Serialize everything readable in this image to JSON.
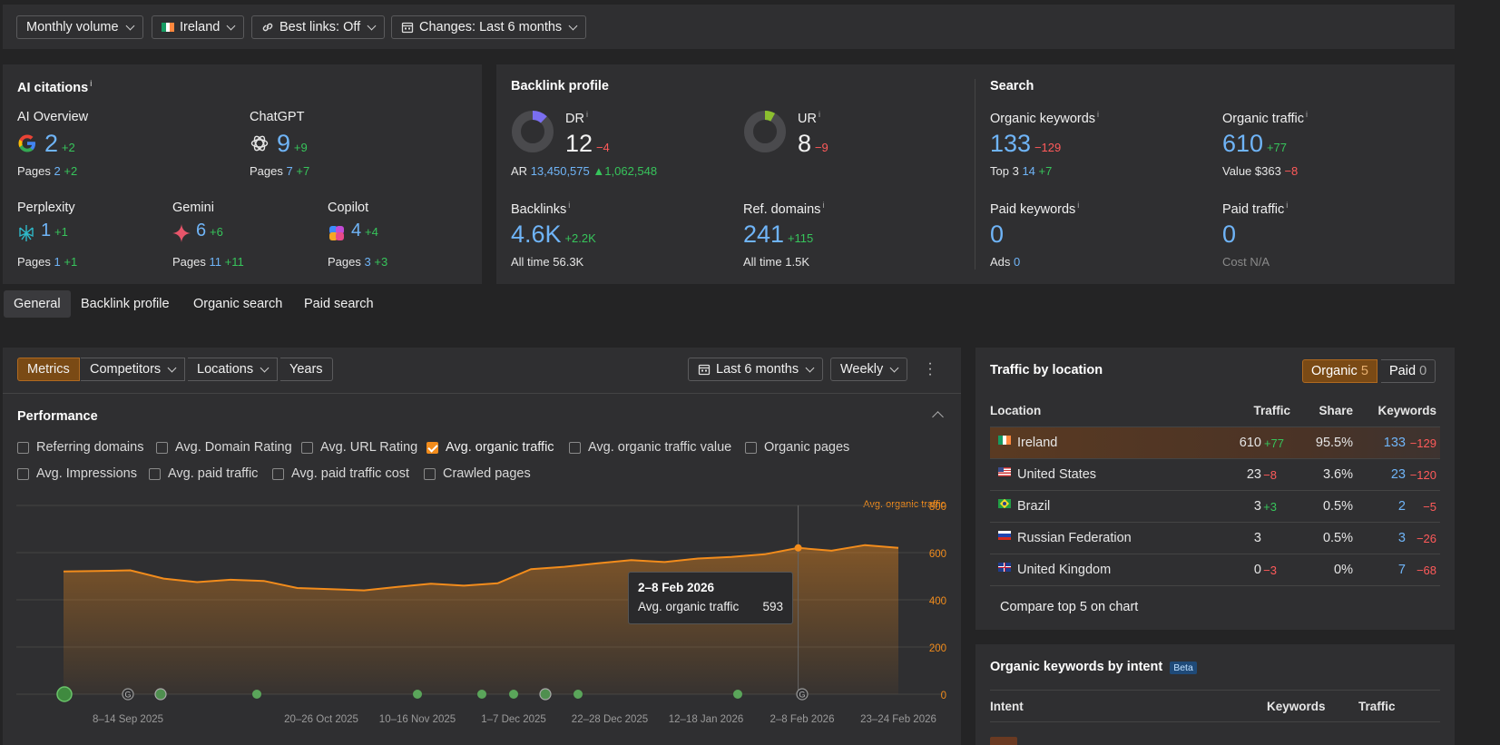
{
  "filters": {
    "volume": "Monthly volume",
    "country": "Ireland",
    "best_links": "Best links: Off",
    "changes": "Changes: Last 6 months"
  },
  "ai_citations": {
    "title": "AI citations",
    "ai_overview": {
      "label": "AI Overview",
      "value": "2",
      "delta": "+2",
      "pages_label": "Pages",
      "pages": "2",
      "pages_delta": "+2"
    },
    "chatgpt": {
      "label": "ChatGPT",
      "value": "9",
      "delta": "+9",
      "pages_label": "Pages",
      "pages": "7",
      "pages_delta": "+7"
    },
    "perplexity": {
      "label": "Perplexity",
      "value": "1",
      "delta": "+1",
      "pages_label": "Pages",
      "pages": "1",
      "pages_delta": "+1"
    },
    "gemini": {
      "label": "Gemini",
      "value": "6",
      "delta": "+6",
      "pages_label": "Pages",
      "pages": "11",
      "pages_delta": "+11"
    },
    "copilot": {
      "label": "Copilot",
      "value": "4",
      "delta": "+4",
      "pages_label": "Pages",
      "pages": "3",
      "pages_delta": "+3"
    }
  },
  "backlink_profile": {
    "title": "Backlink profile",
    "dr": {
      "label": "DR",
      "value": "12",
      "delta": "−4"
    },
    "ar": {
      "label": "AR",
      "value": "13,450,575",
      "delta": "1,062,548"
    },
    "ur": {
      "label": "UR",
      "value": "8",
      "delta": "−9"
    },
    "backlinks": {
      "label": "Backlinks",
      "value": "4.6K",
      "delta": "+2.2K",
      "all_time_label": "All time",
      "all_time": "56.3K"
    },
    "ref_domains": {
      "label": "Ref. domains",
      "value": "241",
      "delta": "+115",
      "all_time_label": "All time",
      "all_time": "1.5K"
    }
  },
  "search": {
    "title": "Search",
    "organic_keywords": {
      "label": "Organic keywords",
      "value": "133",
      "delta": "−129",
      "top3_label": "Top 3",
      "top3": "14",
      "top3_delta": "+7"
    },
    "organic_traffic": {
      "label": "Organic traffic",
      "value": "610",
      "delta": "+77",
      "value_label": "Value",
      "value_amount": "$363",
      "value_delta": "−8"
    },
    "paid_keywords": {
      "label": "Paid keywords",
      "value": "0",
      "ads_label": "Ads",
      "ads": "0"
    },
    "paid_traffic": {
      "label": "Paid traffic",
      "value": "0",
      "cost_label": "Cost",
      "cost": "N/A"
    }
  },
  "tabs": [
    "General",
    "Backlink profile",
    "Organic search",
    "Paid search"
  ],
  "chart_toolbar": {
    "segments": [
      "Metrics",
      "Competitors",
      "Locations",
      "Years"
    ],
    "range": "Last 6 months",
    "interval": "Weekly"
  },
  "performance": {
    "title": "Performance",
    "checkboxes": [
      "Referring domains",
      "Avg. Domain Rating",
      "Avg. URL Rating",
      "Avg. organic traffic",
      "Avg. organic traffic value",
      "Organic pages",
      "Avg. Impressions",
      "Avg. paid traffic",
      "Avg. paid traffic cost",
      "Crawled pages"
    ]
  },
  "chart_data": {
    "type": "area",
    "series": [
      {
        "name": "Avg. organic traffic",
        "values": [
          520,
          522,
          525,
          490,
          475,
          485,
          480,
          450,
          445,
          440,
          455,
          468,
          460,
          470,
          530,
          540,
          555,
          568,
          560,
          575,
          582,
          593,
          620,
          608,
          632,
          620
        ]
      }
    ],
    "y_ticks": [
      "800",
      "600",
      "400",
      "200",
      "0"
    ],
    "ylim": [
      0,
      800
    ],
    "x_ticks": [
      "8–14 Sep 2025",
      "20–26 Oct 2025",
      "10–16 Nov 2025",
      "1–7 Dec 2025",
      "22–28 Dec 2025",
      "12–18 Jan 2026",
      "2–8 Feb 2026",
      "23–24 Feb 2026"
    ],
    "color": "#f28c1c",
    "tooltip": {
      "title": "2–8 Feb 2026",
      "label": "Avg. organic traffic",
      "value": "593"
    }
  },
  "traffic_by_location": {
    "title": "Traffic by location",
    "toggle": {
      "organic_label": "Organic",
      "organic_count": "5",
      "paid_label": "Paid",
      "paid_count": "0"
    },
    "headers": {
      "location": "Location",
      "traffic": "Traffic",
      "share": "Share",
      "keywords": "Keywords"
    },
    "rows": [
      {
        "location": "Ireland",
        "traffic": "610",
        "traffic_delta": "+77",
        "share": "95.5%",
        "keywords": "133",
        "keywords_delta": "−129"
      },
      {
        "location": "United States",
        "traffic": "23",
        "traffic_delta": "−8",
        "share": "3.6%",
        "keywords": "23",
        "keywords_delta": "−120"
      },
      {
        "location": "Brazil",
        "traffic": "3",
        "traffic_delta": "+3",
        "share": "0.5%",
        "keywords": "2",
        "keywords_delta": "−5"
      },
      {
        "location": "Russian Federation",
        "traffic": "3",
        "traffic_delta": "",
        "share": "0.5%",
        "keywords": "3",
        "keywords_delta": "−26"
      },
      {
        "location": "United Kingdom",
        "traffic": "0",
        "traffic_delta": "−3",
        "share": "0%",
        "keywords": "7",
        "keywords_delta": "−68"
      }
    ],
    "compare": "Compare top 5 on chart"
  },
  "intent": {
    "title": "Organic keywords by intent",
    "badge": "Beta",
    "headers": {
      "intent": "Intent",
      "keywords": "Keywords",
      "traffic": "Traffic"
    }
  }
}
